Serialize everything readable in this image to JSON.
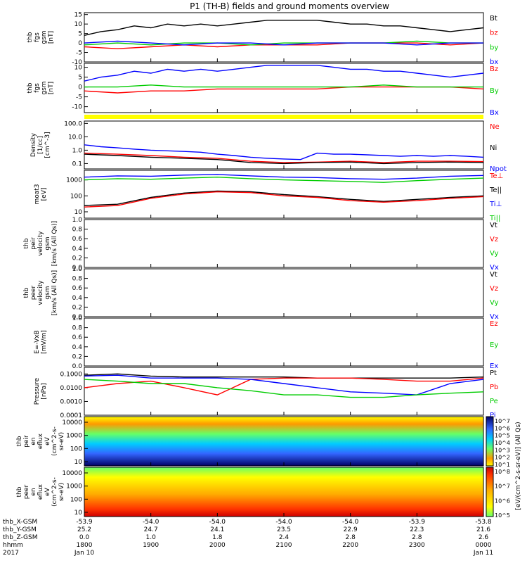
{
  "title": "P1 (TH-B) fields and ground moments overview",
  "chart_data": [
    {
      "type": "line",
      "ylabel": [
        "thb",
        "fgs",
        "gsm",
        "[nT]"
      ],
      "yticks": [
        "15",
        "10",
        "5",
        "0",
        "-5",
        "-10"
      ],
      "ylim": [
        -10,
        16
      ],
      "legend": [
        {
          "name": "Bt",
          "color": "#000000"
        },
        {
          "name": "bz",
          "color": "#ff0000"
        },
        {
          "name": "by",
          "color": "#00cc00"
        },
        {
          "name": "bx",
          "color": "#0000ff"
        }
      ],
      "series": [
        {
          "name": "Bt",
          "color": "#000000",
          "x": [
            1800,
            1815,
            1830,
            1845,
            1900,
            1915,
            1930,
            1945,
            2000,
            2015,
            2030,
            2045,
            2100,
            2115,
            2130,
            2145,
            2200,
            2215,
            2230,
            2245,
            2300,
            2315,
            2330,
            2345,
            2400
          ],
          "values": [
            4,
            6,
            7,
            9,
            8,
            10,
            9,
            10,
            9,
            10,
            11,
            12,
            12,
            12,
            12,
            11,
            10,
            10,
            9,
            9,
            8,
            7,
            6,
            7,
            8
          ]
        },
        {
          "name": "bz",
          "color": "#ff0000",
          "x": [
            1800,
            1830,
            1900,
            1930,
            2000,
            2030,
            2100,
            2130,
            2200,
            2230,
            2300,
            2330,
            2400
          ],
          "values": [
            -2,
            -3,
            -2,
            -1,
            -2,
            -1,
            -1,
            -1,
            0,
            0,
            0,
            -1,
            0
          ]
        },
        {
          "name": "by",
          "color": "#00cc00",
          "x": [
            1800,
            1830,
            1900,
            1930,
            2000,
            2030,
            2100,
            2130,
            2200,
            2230,
            2300,
            2330,
            2400
          ],
          "values": [
            -1,
            0,
            -1,
            0,
            0,
            -1,
            0,
            0,
            0,
            0,
            1,
            0,
            0
          ]
        },
        {
          "name": "bx",
          "color": "#0000ff",
          "x": [
            1800,
            1830,
            1900,
            1930,
            2000,
            2030,
            2100,
            2130,
            2200,
            2230,
            2300,
            2330,
            2400
          ],
          "values": [
            0,
            1,
            0,
            -1,
            0,
            0,
            -1,
            0,
            0,
            0,
            -1,
            0,
            0
          ]
        }
      ]
    },
    {
      "type": "line",
      "ylabel": [
        "thb",
        "fgs",
        "gsm",
        "[nT]"
      ],
      "yticks": [
        "10",
        "5",
        "0",
        "-5",
        "-10"
      ],
      "ylim": [
        -13,
        12
      ],
      "legend": [
        {
          "name": "Bz",
          "color": "#ff0000"
        },
        {
          "name": "By",
          "color": "#00cc00"
        },
        {
          "name": "Bx",
          "color": "#0000ff"
        }
      ],
      "series": [
        {
          "name": "Bx",
          "color": "#0000ff",
          "x": [
            1800,
            1815,
            1830,
            1845,
            1900,
            1915,
            1930,
            1945,
            2000,
            2015,
            2030,
            2045,
            2100,
            2115,
            2130,
            2145,
            2200,
            2215,
            2230,
            2245,
            2300,
            2315,
            2330,
            2345,
            2400
          ],
          "values": [
            3,
            5,
            6,
            8,
            7,
            9,
            8,
            9,
            8,
            9,
            10,
            11,
            11,
            11,
            11,
            10,
            9,
            9,
            8,
            8,
            7,
            6,
            5,
            6,
            7
          ]
        },
        {
          "name": "Bz",
          "color": "#ff0000",
          "x": [
            1800,
            1830,
            1900,
            1930,
            2000,
            2030,
            2100,
            2130,
            2200,
            2230,
            2300,
            2330,
            2400
          ],
          "values": [
            -2,
            -3,
            -2,
            -2,
            -1,
            -1,
            -1,
            -1,
            0,
            0,
            0,
            0,
            -1
          ]
        },
        {
          "name": "By",
          "color": "#00cc00",
          "x": [
            1800,
            1830,
            1900,
            1930,
            2000,
            2030,
            2100,
            2130,
            2200,
            2230,
            2300,
            2330,
            2400
          ],
          "values": [
            0,
            0,
            1,
            0,
            0,
            0,
            0,
            0,
            0,
            1,
            0,
            0,
            0
          ]
        }
      ]
    },
    {
      "type": "line",
      "ylabel": [
        "Density",
        "[1/cc]",
        "[cm^-3]"
      ],
      "yticks": [
        "100.0",
        "10.0",
        "1.0",
        "0.1"
      ],
      "scale": "log",
      "ylim": [
        0.04,
        150
      ],
      "legend": [
        {
          "name": "Ne",
          "color": "#ff0000"
        },
        {
          "name": "Ni",
          "color": "#000000"
        },
        {
          "name": "Npot",
          "color": "#0000ff"
        }
      ],
      "series": [
        {
          "name": "Npot",
          "color": "#0000ff",
          "x": [
            1800,
            1815,
            1830,
            1845,
            1900,
            1915,
            1930,
            1945,
            2000,
            2015,
            2030,
            2045,
            2100,
            2115,
            2130,
            2145,
            2200,
            2215,
            2230,
            2245,
            2300,
            2315,
            2330,
            2345,
            2400
          ],
          "values": [
            2.5,
            1.8,
            1.5,
            1.2,
            1.0,
            0.9,
            0.8,
            0.7,
            0.5,
            0.4,
            0.3,
            0.25,
            0.22,
            0.2,
            0.6,
            0.5,
            0.5,
            0.45,
            0.4,
            0.35,
            0.4,
            0.35,
            0.4,
            0.35,
            0.3
          ]
        },
        {
          "name": "Ne",
          "color": "#ff0000",
          "x": [
            1800,
            1830,
            1900,
            1930,
            2000,
            2030,
            2100,
            2130,
            2200,
            2230,
            2300,
            2330,
            2400
          ],
          "values": [
            0.6,
            0.5,
            0.4,
            0.3,
            0.25,
            0.15,
            0.12,
            0.13,
            0.15,
            0.12,
            0.15,
            0.15,
            0.14
          ]
        },
        {
          "name": "Ni",
          "color": "#000000",
          "x": [
            1800,
            1830,
            1900,
            1930,
            2000,
            2030,
            2100,
            2130,
            2200,
            2230,
            2300,
            2330,
            2400
          ],
          "values": [
            0.5,
            0.4,
            0.3,
            0.25,
            0.2,
            0.12,
            0.1,
            0.12,
            0.13,
            0.1,
            0.12,
            0.13,
            0.12
          ]
        }
      ]
    },
    {
      "type": "line",
      "ylabel": [
        "moat3",
        "[eV]"
      ],
      "yticks": [
        "1000",
        "100",
        "10"
      ],
      "scale": "log",
      "ylim": [
        4,
        4000
      ],
      "legend": [
        {
          "name": "Te⊥",
          "color": "#ff0000"
        },
        {
          "name": "Te||",
          "color": "#000000"
        },
        {
          "name": "Ti⊥",
          "color": "#0000ff"
        },
        {
          "name": "Ti||",
          "color": "#00cc00"
        }
      ],
      "series": [
        {
          "name": "Ti⊥",
          "color": "#0000ff",
          "x": [
            1800,
            1830,
            1900,
            1930,
            2000,
            2030,
            2100,
            2130,
            2200,
            2230,
            2300,
            2330,
            2400
          ],
          "values": [
            1500,
            1800,
            1700,
            2000,
            2200,
            1800,
            1500,
            1400,
            1200,
            1100,
            1300,
            1700,
            1900
          ]
        },
        {
          "name": "Ti||",
          "color": "#00cc00",
          "x": [
            1800,
            1830,
            1900,
            1930,
            2000,
            2030,
            2100,
            2130,
            2200,
            2230,
            2300,
            2330,
            2400
          ],
          "values": [
            1000,
            1200,
            1100,
            1300,
            1500,
            1200,
            1000,
            900,
            800,
            700,
            900,
            1100,
            1300
          ]
        },
        {
          "name": "Te||",
          "color": "#000000",
          "x": [
            1800,
            1830,
            1900,
            1930,
            2000,
            2030,
            2100,
            2130,
            2200,
            2230,
            2300,
            2330,
            2400
          ],
          "values": [
            25,
            30,
            80,
            150,
            200,
            180,
            120,
            90,
            60,
            45,
            60,
            80,
            100
          ]
        },
        {
          "name": "Te⊥",
          "color": "#ff0000",
          "x": [
            1800,
            1830,
            1900,
            1930,
            2000,
            2030,
            2100,
            2130,
            2200,
            2230,
            2300,
            2330,
            2400
          ],
          "values": [
            20,
            25,
            70,
            130,
            180,
            160,
            100,
            80,
            50,
            40,
            50,
            70,
            90
          ]
        }
      ]
    },
    {
      "type": "line",
      "ylabel": [
        "thb",
        "peir",
        "velocity",
        "gsm",
        "[km/s (All Qs)]"
      ],
      "yticks": [
        "1.0",
        "0.8",
        "0.6",
        "0.4",
        "0.2",
        "0.0"
      ],
      "ylim": [
        0,
        1
      ],
      "legend": [
        {
          "name": "Vt",
          "color": "#000000"
        },
        {
          "name": "Vz",
          "color": "#ff0000"
        },
        {
          "name": "Vy",
          "color": "#00cc00"
        },
        {
          "name": "Vx",
          "color": "#0000ff"
        }
      ],
      "series": []
    },
    {
      "type": "line",
      "ylabel": [
        "thb",
        "peer",
        "velocity",
        "gsm",
        "[km/s (All Qs)]"
      ],
      "yticks": [
        "1.0",
        "0.8",
        "0.6",
        "0.4",
        "0.2",
        "0.0"
      ],
      "ylim": [
        0,
        1
      ],
      "legend": [
        {
          "name": "Vt",
          "color": "#000000"
        },
        {
          "name": "Vz",
          "color": "#ff0000"
        },
        {
          "name": "Vy",
          "color": "#00cc00"
        },
        {
          "name": "Vx",
          "color": "#0000ff"
        }
      ],
      "series": []
    },
    {
      "type": "line",
      "ylabel": [
        "E=-VxB",
        "[mV/m]"
      ],
      "yticks": [
        "1.0",
        "0.8",
        "0.6",
        "0.4",
        "0.2",
        "0.0"
      ],
      "ylim": [
        0,
        1
      ],
      "legend": [
        {
          "name": "Ez",
          "color": "#ff0000"
        },
        {
          "name": "Ey",
          "color": "#00cc00"
        },
        {
          "name": "Ex",
          "color": "#0000ff"
        }
      ],
      "series": []
    },
    {
      "type": "line",
      "ylabel": [
        "Pressure",
        "[nPa]"
      ],
      "yticks": [
        "0.1000",
        "0.0100",
        "0.0010",
        "0.0001"
      ],
      "scale": "log",
      "ylim": [
        0.0001,
        0.3
      ],
      "legend": [
        {
          "name": "Pt",
          "color": "#000000"
        },
        {
          "name": "Pb",
          "color": "#ff0000"
        },
        {
          "name": "Pe",
          "color": "#00cc00"
        },
        {
          "name": "Pi",
          "color": "#0000ff"
        }
      ],
      "series": [
        {
          "name": "Pt",
          "color": "#000000",
          "x": [
            1800,
            1830,
            1900,
            1930,
            2000,
            2030,
            2100,
            2130,
            2200,
            2230,
            2300,
            2330,
            2400
          ],
          "values": [
            0.08,
            0.1,
            0.07,
            0.06,
            0.06,
            0.06,
            0.06,
            0.05,
            0.05,
            0.05,
            0.05,
            0.05,
            0.06
          ]
        },
        {
          "name": "Pb",
          "color": "#ff0000",
          "x": [
            1800,
            1830,
            1900,
            1930,
            2000,
            2030,
            2100,
            2130,
            2200,
            2230,
            2300,
            2330,
            2400
          ],
          "values": [
            0.01,
            0.02,
            0.03,
            0.01,
            0.003,
            0.04,
            0.05,
            0.05,
            0.05,
            0.04,
            0.03,
            0.03,
            0.05
          ]
        },
        {
          "name": "Pi",
          "color": "#0000ff",
          "x": [
            1800,
            1830,
            1900,
            1930,
            2000,
            2030,
            2100,
            2130,
            2200,
            2230,
            2300,
            2330,
            2400
          ],
          "values": [
            0.07,
            0.08,
            0.05,
            0.05,
            0.05,
            0.04,
            0.02,
            0.01,
            0.005,
            0.004,
            0.003,
            0.02,
            0.04
          ]
        },
        {
          "name": "Pe",
          "color": "#00cc00",
          "x": [
            1800,
            1830,
            1900,
            1930,
            2000,
            2030,
            2100,
            2130,
            2200,
            2230,
            2300,
            2330,
            2400
          ],
          "values": [
            0.04,
            0.03,
            0.02,
            0.02,
            0.01,
            0.006,
            0.003,
            0.003,
            0.002,
            0.002,
            0.003,
            0.004,
            0.005
          ]
        }
      ]
    },
    {
      "type": "heatmap",
      "ylabel": [
        "thb",
        "peir",
        "en",
        "eflux",
        "eV",
        "(cm^2-s-",
        "sr-eV)"
      ],
      "yticks": [
        "10000",
        "1000",
        "100",
        "10"
      ],
      "colorbar_ticks": [
        "10^7",
        "10^6",
        "10^5",
        "10^4",
        "10^3",
        "10^2",
        "10^1"
      ]
    },
    {
      "type": "heatmap",
      "ylabel": [
        "thb",
        "peer",
        "en",
        "eflux",
        "eV",
        "(cm^2-s-",
        "sr-eV)"
      ],
      "yticks": [
        "10000",
        "1000",
        "100",
        "10"
      ],
      "colorbar_ticks": [
        "10^8",
        "10^7",
        "10^6",
        "10^5"
      ]
    }
  ],
  "colorbar_label": "[eV/(cm^2-s-sr-eV)] (All Qs)",
  "xaxis": {
    "rows": [
      {
        "label": "thb_X-GSM",
        "values": [
          "-53.9",
          "-54.0",
          "-54.0",
          "-54.0",
          "-54.0",
          "-53.9",
          "-53.8"
        ]
      },
      {
        "label": "thb_Y-GSM",
        "values": [
          "25.2",
          "24.7",
          "24.1",
          "23.5",
          "22.9",
          "22.3",
          "21.6"
        ]
      },
      {
        "label": "thb_Z-GSM",
        "values": [
          "0.0",
          "1.0",
          "1.8",
          "2.4",
          "2.8",
          "2.8",
          "2.6"
        ]
      },
      {
        "label": "hhmm",
        "values": [
          "1800",
          "1900",
          "2000",
          "2100",
          "2200",
          "2300",
          "0000"
        ]
      },
      {
        "label": "2017",
        "values": [
          "Jan 10",
          "",
          "",
          "",
          "",
          "",
          "Jan 11"
        ]
      }
    ]
  }
}
